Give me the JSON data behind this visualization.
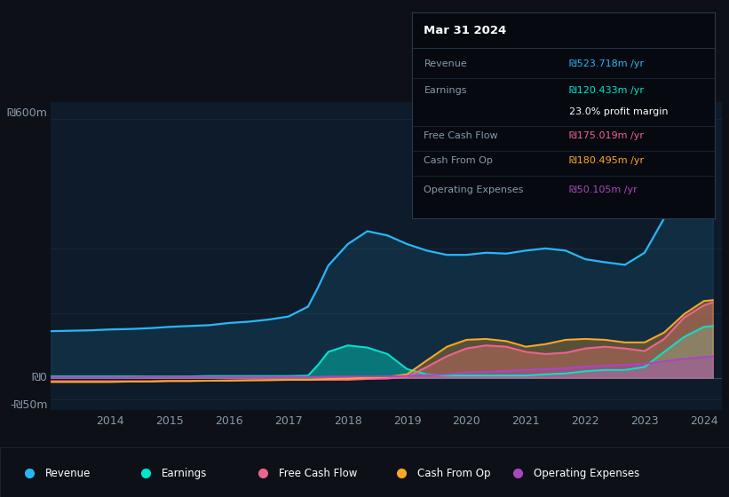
{
  "bg_color": "#0d1117",
  "plot_bg_color": "#0d1b2a",
  "grid_color": "#1e2d3d",
  "revenue_color": "#29b6f6",
  "earnings_color": "#00e5cc",
  "fcf_color": "#f06292",
  "cash_op_color": "#ffa726",
  "op_exp_color": "#ab47bc",
  "years": [
    2013.0,
    2013.33,
    2013.67,
    2014.0,
    2014.33,
    2014.67,
    2015.0,
    2015.33,
    2015.67,
    2016.0,
    2016.33,
    2016.67,
    2017.0,
    2017.33,
    2017.5,
    2017.67,
    2018.0,
    2018.33,
    2018.67,
    2019.0,
    2019.33,
    2019.67,
    2020.0,
    2020.33,
    2020.67,
    2021.0,
    2021.33,
    2021.67,
    2022.0,
    2022.33,
    2022.67,
    2023.0,
    2023.33,
    2023.67,
    2024.0,
    2024.15
  ],
  "revenue": [
    108,
    109,
    110,
    112,
    113,
    115,
    118,
    120,
    122,
    127,
    130,
    135,
    142,
    165,
    210,
    260,
    310,
    340,
    330,
    310,
    295,
    285,
    285,
    290,
    288,
    295,
    300,
    295,
    275,
    268,
    262,
    290,
    370,
    460,
    540,
    524
  ],
  "earnings": [
    3,
    3,
    3,
    3,
    3,
    3,
    3,
    3,
    4,
    4,
    4,
    4,
    4,
    5,
    30,
    60,
    75,
    70,
    55,
    20,
    8,
    5,
    5,
    5,
    5,
    5,
    8,
    10,
    15,
    18,
    18,
    25,
    60,
    95,
    118,
    120
  ],
  "free_cash_flow": [
    -8,
    -8,
    -8,
    -8,
    -8,
    -8,
    -7,
    -7,
    -7,
    -6,
    -6,
    -5,
    -5,
    -5,
    -5,
    -5,
    -5,
    -3,
    -2,
    2,
    25,
    50,
    68,
    75,
    72,
    60,
    55,
    58,
    68,
    72,
    68,
    62,
    90,
    140,
    168,
    175
  ],
  "cash_from_op": [
    -10,
    -10,
    -10,
    -10,
    -9,
    -9,
    -8,
    -8,
    -7,
    -7,
    -6,
    -6,
    -5,
    -5,
    -4,
    -3,
    -2,
    0,
    2,
    8,
    40,
    72,
    88,
    90,
    85,
    72,
    78,
    88,
    90,
    88,
    82,
    82,
    105,
    148,
    178,
    180
  ],
  "op_expenses": [
    1,
    1,
    1,
    1,
    1,
    2,
    2,
    2,
    2,
    2,
    2,
    2,
    2,
    2,
    2,
    3,
    3,
    3,
    3,
    4,
    6,
    8,
    12,
    14,
    16,
    18,
    20,
    22,
    26,
    28,
    30,
    32,
    38,
    44,
    48,
    50
  ],
  "ylim": [
    -75,
    640
  ],
  "xlim": [
    2013.0,
    2024.3
  ],
  "xtick_years": [
    2014,
    2015,
    2016,
    2017,
    2018,
    2019,
    2020,
    2021,
    2022,
    2023,
    2024
  ],
  "xtick_labels": [
    "2014",
    "2015",
    "2016",
    "2017",
    "2018",
    "2019",
    "2020",
    "2021",
    "2022",
    "2023",
    "2024"
  ],
  "ylabel_600": "₪600m",
  "ylabel_0": "₪0",
  "ylabel_neg50": "-₪50m",
  "tick_color": "#8899aa",
  "tooltip_title": "Mar 31 2024",
  "tooltip_rows": [
    {
      "label": "Revenue",
      "value": "₪523.718m /yr",
      "color": "#29b6f6"
    },
    {
      "label": "Earnings",
      "value": "₪120.433m /yr",
      "color": "#00e5cc"
    },
    {
      "label": "",
      "value": "23.0% profit margin",
      "color": "#ffffff"
    },
    {
      "label": "Free Cash Flow",
      "value": "₪175.019m /yr",
      "color": "#f06292"
    },
    {
      "label": "Cash From Op",
      "value": "₪180.495m /yr",
      "color": "#ffa726"
    },
    {
      "label": "Operating Expenses",
      "value": "₪50.105m /yr",
      "color": "#ab47bc"
    }
  ],
  "legend_labels": [
    "Revenue",
    "Earnings",
    "Free Cash Flow",
    "Cash From Op",
    "Operating Expenses"
  ],
  "legend_colors": [
    "#29b6f6",
    "#00e5cc",
    "#f06292",
    "#ffa726",
    "#ab47bc"
  ]
}
